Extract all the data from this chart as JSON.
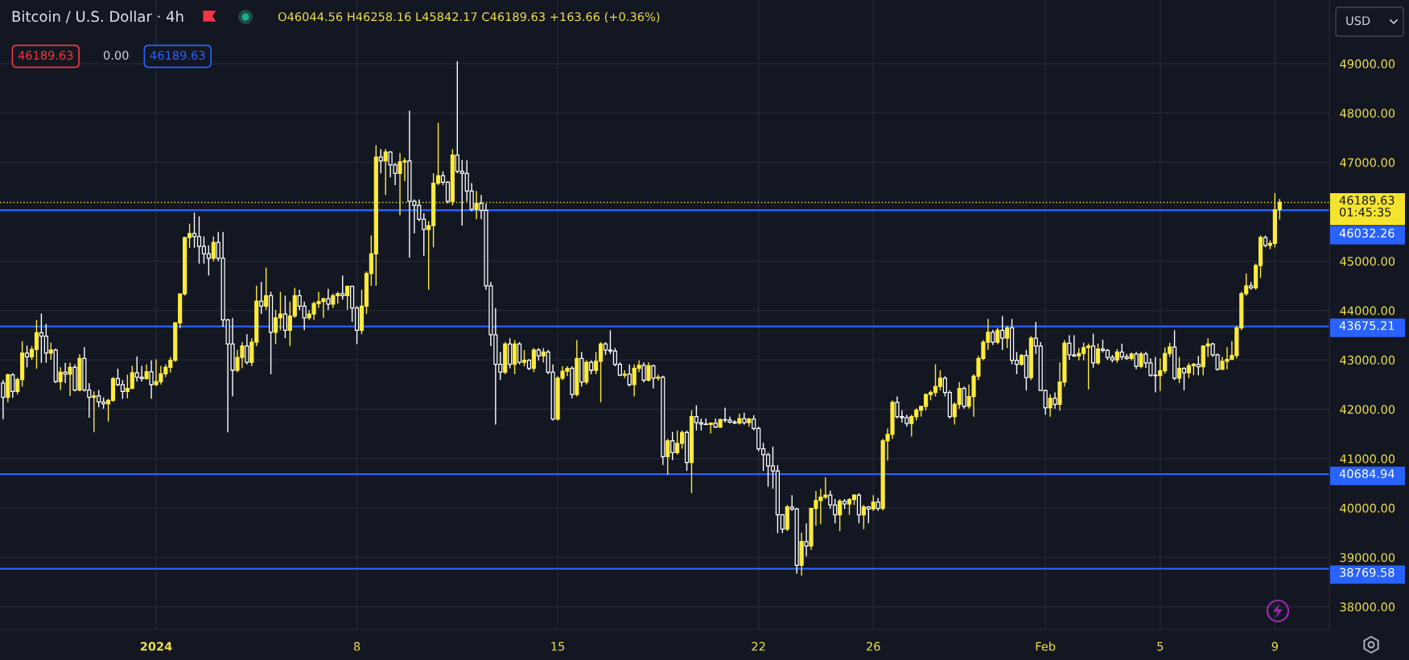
{
  "chart_data": {
    "type": "candlestick",
    "title": "Bitcoin / U.S. Dollar · 4h",
    "annotations": [
      "O46044.56 H46258.16 L45842.17 C46189.63 +163.66 (+0.36%)",
      "46189.63",
      "0.00",
      "46189.63",
      "USD"
    ],
    "x": [
      "2023-12-26T16:00",
      "2023-12-26T20:00",
      "2023-12-27T00:00",
      "2023-12-27T04:00",
      "2023-12-27T08:00",
      "2023-12-27T12:00",
      "2023-12-27T16:00",
      "2023-12-27T20:00",
      "2023-12-28T00:00",
      "2023-12-28T04:00",
      "2023-12-28T08:00",
      "2023-12-28T12:00",
      "2023-12-28T16:00",
      "2023-12-28T20:00",
      "2023-12-29T00:00",
      "2023-12-29T04:00",
      "2023-12-29T08:00",
      "2023-12-29T12:00",
      "2023-12-29T16:00",
      "2023-12-29T20:00",
      "2023-12-30T00:00",
      "2023-12-30T04:00",
      "2023-12-30T08:00",
      "2023-12-30T12:00",
      "2023-12-30T16:00",
      "2023-12-30T20:00",
      "2023-12-31T00:00",
      "2023-12-31T04:00",
      "2023-12-31T08:00",
      "2023-12-31T12:00",
      "2023-12-31T16:00",
      "2023-12-31T20:00",
      "2024-01-01T00:00",
      "2024-01-01T04:00",
      "2024-01-01T08:00",
      "2024-01-01T12:00",
      "2024-01-01T16:00",
      "2024-01-01T20:00",
      "2024-01-02T00:00",
      "2024-01-02T04:00",
      "2024-01-02T08:00",
      "2024-01-02T12:00",
      "2024-01-02T16:00",
      "2024-01-02T20:00",
      "2024-01-03T00:00",
      "2024-01-03T04:00",
      "2024-01-03T08:00",
      "2024-01-03T12:00",
      "2024-01-03T16:00",
      "2024-01-03T20:00",
      "2024-01-04T00:00",
      "2024-01-04T04:00",
      "2024-01-04T08:00",
      "2024-01-04T12:00",
      "2024-01-04T16:00",
      "2024-01-04T20:00",
      "2024-01-05T00:00",
      "2024-01-05T04:00",
      "2024-01-05T08:00",
      "2024-01-05T12:00",
      "2024-01-05T16:00",
      "2024-01-05T20:00",
      "2024-01-06T00:00",
      "2024-01-06T04:00",
      "2024-01-06T08:00",
      "2024-01-06T12:00",
      "2024-01-06T16:00",
      "2024-01-06T20:00",
      "2024-01-07T00:00",
      "2024-01-07T04:00",
      "2024-01-07T08:00",
      "2024-01-07T12:00",
      "2024-01-07T16:00",
      "2024-01-07T20:00",
      "2024-01-08T00:00",
      "2024-01-08T04:00",
      "2024-01-08T08:00",
      "2024-01-08T12:00",
      "2024-01-08T16:00",
      "2024-01-08T20:00",
      "2024-01-09T00:00",
      "2024-01-09T04:00",
      "2024-01-09T08:00",
      "2024-01-09T12:00",
      "2024-01-09T16:00",
      "2024-01-09T20:00",
      "2024-01-10T00:00",
      "2024-01-10T04:00",
      "2024-01-10T08:00",
      "2024-01-10T12:00",
      "2024-01-10T16:00",
      "2024-01-10T20:00",
      "2024-01-11T00:00",
      "2024-01-11T04:00",
      "2024-01-11T08:00",
      "2024-01-11T12:00",
      "2024-01-11T16:00",
      "2024-01-11T20:00",
      "2024-01-12T00:00",
      "2024-01-12T04:00",
      "2024-01-12T08:00",
      "2024-01-12T12:00",
      "2024-01-12T16:00",
      "2024-01-12T20:00",
      "2024-01-13T00:00",
      "2024-01-13T04:00",
      "2024-01-13T08:00",
      "2024-01-13T12:00",
      "2024-01-13T16:00",
      "2024-01-13T20:00",
      "2024-01-14T00:00",
      "2024-01-14T04:00",
      "2024-01-14T08:00",
      "2024-01-14T12:00",
      "2024-01-14T16:00",
      "2024-01-14T20:00",
      "2024-01-15T00:00",
      "2024-01-15T04:00",
      "2024-01-15T08:00",
      "2024-01-15T12:00",
      "2024-01-15T16:00",
      "2024-01-15T20:00",
      "2024-01-16T00:00",
      "2024-01-16T04:00",
      "2024-01-16T08:00",
      "2024-01-16T12:00",
      "2024-01-16T16:00",
      "2024-01-16T20:00",
      "2024-01-17T00:00",
      "2024-01-17T04:00",
      "2024-01-17T08:00",
      "2024-01-17T12:00",
      "2024-01-17T16:00",
      "2024-01-17T20:00",
      "2024-01-18T00:00",
      "2024-01-18T04:00",
      "2024-01-18T08:00",
      "2024-01-18T12:00",
      "2024-01-18T16:00",
      "2024-01-18T20:00",
      "2024-01-19T00:00",
      "2024-01-19T04:00",
      "2024-01-19T08:00",
      "2024-01-19T12:00",
      "2024-01-19T16:00",
      "2024-01-19T20:00",
      "2024-01-20T00:00",
      "2024-01-20T04:00",
      "2024-01-20T08:00",
      "2024-01-20T12:00",
      "2024-01-20T16:00",
      "2024-01-20T20:00",
      "2024-01-21T00:00",
      "2024-01-21T04:00",
      "2024-01-21T08:00",
      "2024-01-21T12:00",
      "2024-01-21T16:00",
      "2024-01-21T20:00",
      "2024-01-22T00:00",
      "2024-01-22T04:00",
      "2024-01-22T08:00",
      "2024-01-22T12:00",
      "2024-01-22T16:00",
      "2024-01-22T20:00",
      "2024-01-23T00:00",
      "2024-01-23T04:00",
      "2024-01-23T08:00",
      "2024-01-23T12:00",
      "2024-01-23T16:00",
      "2024-01-23T20:00",
      "2024-01-24T00:00",
      "2024-01-24T04:00",
      "2024-01-24T08:00",
      "2024-01-24T12:00",
      "2024-01-24T16:00",
      "2024-01-24T20:00",
      "2024-01-25T00:00",
      "2024-01-25T04:00",
      "2024-01-25T08:00",
      "2024-01-25T12:00",
      "2024-01-25T16:00",
      "2024-01-25T20:00",
      "2024-01-26T00:00",
      "2024-01-26T04:00",
      "2024-01-26T08:00",
      "2024-01-26T12:00",
      "2024-01-26T16:00",
      "2024-01-26T20:00",
      "2024-01-27T00:00",
      "2024-01-27T04:00",
      "2024-01-27T08:00",
      "2024-01-27T12:00",
      "2024-01-27T16:00",
      "2024-01-27T20:00",
      "2024-01-28T00:00",
      "2024-01-28T04:00",
      "2024-01-28T08:00",
      "2024-01-28T12:00",
      "2024-01-28T16:00",
      "2024-01-28T20:00",
      "2024-01-29T00:00",
      "2024-01-29T04:00",
      "2024-01-29T08:00",
      "2024-01-29T12:00",
      "2024-01-29T16:00",
      "2024-01-29T20:00",
      "2024-01-30T00:00",
      "2024-01-30T04:00",
      "2024-01-30T08:00",
      "2024-01-30T12:00",
      "2024-01-30T16:00",
      "2024-01-30T20:00",
      "2024-01-31T00:00",
      "2024-01-31T04:00",
      "2024-01-31T08:00",
      "2024-01-31T12:00",
      "2024-01-31T16:00",
      "2024-01-31T20:00",
      "2024-02-01T00:00",
      "2024-02-01T04:00",
      "2024-02-01T08:00",
      "2024-02-01T12:00",
      "2024-02-01T16:00",
      "2024-02-01T20:00",
      "2024-02-02T00:00",
      "2024-02-02T04:00",
      "2024-02-02T08:00",
      "2024-02-02T12:00",
      "2024-02-02T16:00",
      "2024-02-02T20:00",
      "2024-02-03T00:00",
      "2024-02-03T04:00",
      "2024-02-03T08:00",
      "2024-02-03T12:00",
      "2024-02-03T16:00",
      "2024-02-03T20:00",
      "2024-02-04T00:00",
      "2024-02-04T04:00",
      "2024-02-04T08:00",
      "2024-02-04T12:00",
      "2024-02-04T16:00",
      "2024-02-04T20:00",
      "2024-02-05T00:00",
      "2024-02-05T04:00",
      "2024-02-05T08:00",
      "2024-02-05T12:00",
      "2024-02-05T16:00",
      "2024-02-05T20:00",
      "2024-02-06T00:00",
      "2024-02-06T04:00",
      "2024-02-06T08:00",
      "2024-02-06T12:00",
      "2024-02-06T16:00",
      "2024-02-06T20:00",
      "2024-02-07T00:00",
      "2024-02-07T04:00",
      "2024-02-07T08:00",
      "2024-02-07T12:00",
      "2024-02-07T16:00",
      "2024-02-07T20:00",
      "2024-02-08T00:00",
      "2024-02-08T04:00",
      "2024-02-08T08:00",
      "2024-02-08T12:00",
      "2024-02-08T16:00",
      "2024-02-08T20:00",
      "2024-02-09T00:00",
      "2024-02-09T04:00"
    ],
    "ohlc": [
      [
        42530,
        42590,
        41800,
        42240
      ],
      [
        42240,
        42720,
        42140,
        42700
      ],
      [
        42700,
        42730,
        42230,
        42360
      ],
      [
        42360,
        42640,
        42300,
        42600
      ],
      [
        42600,
        43380,
        42460,
        43140
      ],
      [
        43140,
        43290,
        42850,
        43060
      ],
      [
        43060,
        43280,
        43000,
        43210
      ],
      [
        43210,
        43810,
        42820,
        43550
      ],
      [
        43550,
        43940,
        42940,
        43480
      ],
      [
        43480,
        43730,
        42940,
        43140
      ],
      [
        43140,
        43350,
        43000,
        43200
      ],
      [
        43200,
        43230,
        42530,
        42560
      ],
      [
        42560,
        42850,
        42390,
        42750
      ],
      [
        42750,
        42940,
        42530,
        42710
      ],
      [
        42710,
        42940,
        42270,
        42850
      ],
      [
        42850,
        42910,
        42360,
        42390
      ],
      [
        42390,
        43110,
        42360,
        43030
      ],
      [
        43030,
        43260,
        42360,
        42390
      ],
      [
        42390,
        42530,
        41830,
        42240
      ],
      [
        42240,
        42360,
        41540,
        42270
      ],
      [
        42270,
        42390,
        42040,
        42150
      ],
      [
        42150,
        42240,
        42010,
        42110
      ],
      [
        42110,
        42210,
        41750,
        42180
      ],
      [
        42180,
        42650,
        42150,
        42620
      ],
      [
        42620,
        42820,
        42470,
        42500
      ],
      [
        42500,
        42590,
        42210,
        42360
      ],
      [
        42360,
        42700,
        42220,
        42420
      ],
      [
        42420,
        42880,
        42410,
        42740
      ],
      [
        42740,
        43070,
        42560,
        42650
      ],
      [
        42650,
        42880,
        42560,
        42620
      ],
      [
        42620,
        42910,
        42600,
        42760
      ],
      [
        42760,
        42990,
        42210,
        42500
      ],
      [
        42500,
        43010,
        42470,
        42560
      ],
      [
        42560,
        42880,
        42500,
        42720
      ],
      [
        42720,
        42910,
        42650,
        42850
      ],
      [
        42850,
        43060,
        42740,
        42990
      ],
      [
        42990,
        43760,
        42960,
        43750
      ],
      [
        43750,
        44340,
        43640,
        44335
      ],
      [
        44335,
        45490,
        44300,
        45480
      ],
      [
        45480,
        45760,
        45270,
        45560
      ],
      [
        45560,
        45980,
        45270,
        45500
      ],
      [
        45500,
        45910,
        44950,
        45300
      ],
      [
        45300,
        45500,
        44950,
        45150
      ],
      [
        45150,
        45320,
        44710,
        45060
      ],
      [
        45060,
        45500,
        45000,
        45380
      ],
      [
        45380,
        45590,
        45000,
        45060
      ],
      [
        45060,
        45590,
        43670,
        43810
      ],
      [
        43810,
        43830,
        41530,
        43320
      ],
      [
        43320,
        43850,
        42260,
        42790
      ],
      [
        42790,
        43200,
        42750,
        43050
      ],
      [
        43050,
        43360,
        42830,
        43280
      ],
      [
        43280,
        43520,
        42910,
        42950
      ],
      [
        42950,
        43440,
        42870,
        43360
      ],
      [
        43360,
        44500,
        43280,
        44190
      ],
      [
        44190,
        44580,
        43930,
        44090
      ],
      [
        44090,
        44870,
        44010,
        44300
      ],
      [
        44300,
        44380,
        42710,
        43560
      ],
      [
        43560,
        44010,
        43320,
        43850
      ],
      [
        43850,
        44380,
        43600,
        43930
      ],
      [
        43930,
        44300,
        43440,
        43600
      ],
      [
        43600,
        44180,
        43280,
        43890
      ],
      [
        43890,
        44460,
        43850,
        44300
      ],
      [
        44300,
        44420,
        44010,
        44090
      ],
      [
        44090,
        44180,
        43600,
        43850
      ],
      [
        43850,
        44010,
        43810,
        43930
      ],
      [
        43930,
        44180,
        43810,
        44140
      ],
      [
        44140,
        44380,
        44050,
        44180
      ],
      [
        44180,
        44260,
        43850,
        44240
      ],
      [
        44240,
        44440,
        44010,
        44130
      ],
      [
        44130,
        44340,
        44050,
        44300
      ],
      [
        44300,
        44380,
        44140,
        44340
      ],
      [
        44340,
        44710,
        44220,
        44300
      ],
      [
        44300,
        44500,
        44010,
        44490
      ],
      [
        44490,
        44500,
        43770,
        44050
      ],
      [
        44050,
        44090,
        43320,
        43600
      ],
      [
        43600,
        44420,
        43520,
        44090
      ],
      [
        44090,
        44790,
        43930,
        44750
      ],
      [
        44750,
        45520,
        44500,
        45150
      ],
      [
        45150,
        47350,
        44500,
        47110
      ],
      [
        47110,
        47270,
        46780,
        47030
      ],
      [
        47030,
        47270,
        46340,
        47210
      ],
      [
        47210,
        47230,
        46700,
        46950
      ],
      [
        46950,
        46990,
        46540,
        46780
      ],
      [
        46780,
        47190,
        45930,
        47010
      ],
      [
        47010,
        47090,
        46620,
        47030
      ],
      [
        47030,
        48050,
        45070,
        46210
      ],
      [
        46210,
        46250,
        45560,
        46130
      ],
      [
        46130,
        46250,
        45810,
        45850
      ],
      [
        45850,
        45970,
        45110,
        45640
      ],
      [
        45640,
        45810,
        44420,
        45720
      ],
      [
        45720,
        46780,
        45280,
        46580
      ],
      [
        46580,
        47800,
        46540,
        46730
      ],
      [
        46730,
        46820,
        46540,
        46600
      ],
      [
        46600,
        46620,
        46170,
        46210
      ],
      [
        46210,
        47270,
        46130,
        47150
      ],
      [
        47150,
        49050,
        46780,
        46820
      ],
      [
        46820,
        47050,
        45720,
        46780
      ],
      [
        46780,
        47040,
        46210,
        46420
      ],
      [
        46420,
        46580,
        46010,
        46050
      ],
      [
        46050,
        46420,
        45850,
        46170
      ],
      [
        46170,
        46340,
        45850,
        46030
      ],
      [
        46030,
        46170,
        44420,
        44500
      ],
      [
        44500,
        44580,
        43280,
        43510
      ],
      [
        43510,
        44050,
        41690,
        42910
      ],
      [
        42910,
        43160,
        42590,
        42750
      ],
      [
        42750,
        43360,
        42710,
        43320
      ],
      [
        43320,
        43440,
        42830,
        42910
      ],
      [
        42910,
        43400,
        42710,
        43320
      ],
      [
        43320,
        43360,
        42910,
        42950
      ],
      [
        42950,
        43200,
        42870,
        42990
      ],
      [
        42990,
        43020,
        42790,
        42830
      ],
      [
        42830,
        43240,
        42750,
        43200
      ],
      [
        43200,
        43240,
        42990,
        43080
      ],
      [
        43080,
        43240,
        42950,
        43160
      ],
      [
        43160,
        43200,
        42710,
        42750
      ],
      [
        42750,
        42910,
        41770,
        41800
      ],
      [
        41800,
        42670,
        41770,
        42630
      ],
      [
        42630,
        42870,
        42590,
        42770
      ],
      [
        42770,
        42870,
        42670,
        42830
      ],
      [
        42830,
        42870,
        42220,
        42300
      ],
      [
        42300,
        43400,
        42260,
        43030
      ],
      [
        43030,
        43160,
        42460,
        42550
      ],
      [
        42550,
        42990,
        42500,
        42950
      ],
      [
        42950,
        42990,
        42710,
        42790
      ],
      [
        42790,
        43160,
        42710,
        42970
      ],
      [
        42970,
        43360,
        42140,
        43320
      ],
      [
        43320,
        43360,
        43100,
        43200
      ],
      [
        43200,
        43600,
        43120,
        43180
      ],
      [
        43180,
        43240,
        42870,
        42910
      ],
      [
        42910,
        42950,
        42670,
        42690
      ],
      [
        42690,
        42790,
        42630,
        42710
      ],
      [
        42710,
        42910,
        42460,
        42500
      ],
      [
        42500,
        42910,
        42260,
        42830
      ],
      [
        42830,
        42990,
        42750,
        42890
      ],
      [
        42890,
        42950,
        42540,
        42590
      ],
      [
        42590,
        42950,
        42560,
        42880
      ],
      [
        42880,
        42900,
        42420,
        42630
      ],
      [
        42630,
        42700,
        42580,
        42650
      ],
      [
        42650,
        42680,
        40870,
        41040
      ],
      [
        41040,
        41400,
        40670,
        41360
      ],
      [
        41360,
        41540,
        40970,
        41120
      ],
      [
        41120,
        41570,
        41080,
        41310
      ],
      [
        41310,
        41570,
        41200,
        41530
      ],
      [
        41530,
        41570,
        40750,
        40920
      ],
      [
        40920,
        41980,
        40300,
        41850
      ],
      [
        41850,
        42080,
        41570,
        41730
      ],
      [
        41730,
        41810,
        41570,
        41700
      ],
      [
        41700,
        41810,
        41680,
        41690
      ],
      [
        41690,
        41730,
        41510,
        41720
      ],
      [
        41720,
        41810,
        41620,
        41640
      ],
      [
        41640,
        41810,
        41620,
        41790
      ],
      [
        41790,
        42030,
        41730,
        41780
      ],
      [
        41780,
        41850,
        41710,
        41740
      ],
      [
        41740,
        41780,
        41700,
        41720
      ],
      [
        41720,
        41910,
        41690,
        41810
      ],
      [
        41810,
        41930,
        41690,
        41730
      ],
      [
        41730,
        41830,
        41650,
        41800
      ],
      [
        41800,
        41880,
        41570,
        41610
      ],
      [
        41610,
        41650,
        41150,
        41200
      ],
      [
        41200,
        41320,
        40750,
        41080
      ],
      [
        41080,
        41120,
        40430,
        40850
      ],
      [
        40850,
        41240,
        40390,
        40750
      ],
      [
        40750,
        40870,
        39490,
        39860
      ],
      [
        39860,
        39880,
        39490,
        39570
      ],
      [
        39570,
        40060,
        39530,
        40020
      ],
      [
        40020,
        40260,
        39940,
        39980
      ],
      [
        39980,
        40000,
        38670,
        38840
      ],
      [
        38840,
        39500,
        38630,
        39320
      ],
      [
        39320,
        39690,
        39020,
        39230
      ],
      [
        39230,
        40000,
        39150,
        39990
      ],
      [
        39990,
        40345,
        39640,
        40150
      ],
      [
        40150,
        40390,
        39670,
        40220
      ],
      [
        40220,
        40620,
        40180,
        40260
      ],
      [
        40260,
        40350,
        39980,
        40060
      ],
      [
        40060,
        40180,
        39690,
        39860
      ],
      [
        39860,
        40180,
        39530,
        40140
      ],
      [
        40140,
        40180,
        39980,
        40080
      ],
      [
        40080,
        40200,
        39860,
        40170
      ],
      [
        40170,
        40280,
        40060,
        40260
      ],
      [
        40260,
        40300,
        39690,
        39860
      ],
      [
        39860,
        40060,
        39570,
        40020
      ],
      [
        40020,
        40040,
        39690,
        39980
      ],
      [
        39980,
        40260,
        39940,
        40120
      ],
      [
        40120,
        40200,
        39940,
        39990
      ],
      [
        39990,
        41400,
        39950,
        41360
      ],
      [
        41360,
        41610,
        40960,
        41490
      ],
      [
        41490,
        42180,
        41400,
        42140
      ],
      [
        42140,
        42260,
        41810,
        41850
      ],
      [
        41850,
        41980,
        41730,
        41830
      ],
      [
        41830,
        41890,
        41650,
        41710
      ],
      [
        41710,
        41890,
        41450,
        41850
      ],
      [
        41850,
        42020,
        41770,
        41980
      ],
      [
        41980,
        42070,
        41850,
        42060
      ],
      [
        42060,
        42320,
        41980,
        42300
      ],
      [
        42300,
        42380,
        42180,
        42340
      ],
      [
        42340,
        42910,
        42260,
        42460
      ],
      [
        42460,
        42790,
        42380,
        42630
      ],
      [
        42630,
        42670,
        42260,
        42340
      ],
      [
        42340,
        42380,
        41810,
        41850
      ],
      [
        41850,
        42140,
        41690,
        42100
      ],
      [
        42100,
        42550,
        42010,
        42420
      ],
      [
        42420,
        42460,
        42010,
        42060
      ],
      [
        42060,
        42500,
        42010,
        42260
      ],
      [
        42260,
        42710,
        41850,
        42670
      ],
      [
        42670,
        43080,
        42590,
        43030
      ],
      [
        43030,
        43400,
        42990,
        43360
      ],
      [
        43360,
        43830,
        43200,
        43560
      ],
      [
        43560,
        43610,
        43300,
        43360
      ],
      [
        43360,
        43650,
        43320,
        43600
      ],
      [
        43600,
        43890,
        43200,
        43440
      ],
      [
        43440,
        43690,
        43240,
        43650
      ],
      [
        43650,
        43830,
        42910,
        42990
      ],
      [
        42990,
        43160,
        42710,
        42910
      ],
      [
        42910,
        43120,
        42880,
        43090
      ],
      [
        43090,
        43200,
        42380,
        42640
      ],
      [
        42640,
        43480,
        42590,
        43440
      ],
      [
        43440,
        43770,
        43120,
        43280
      ],
      [
        43280,
        43360,
        42370,
        42380
      ],
      [
        42380,
        42400,
        41890,
        42030
      ],
      [
        42030,
        42300,
        41850,
        42220
      ],
      [
        42220,
        42340,
        42010,
        42100
      ],
      [
        42100,
        42950,
        41970,
        42550
      ],
      [
        42550,
        43400,
        42460,
        43340
      ],
      [
        43340,
        43500,
        43000,
        43100
      ],
      [
        43100,
        43500,
        43060,
        43080
      ],
      [
        43080,
        43240,
        42990,
        43130
      ],
      [
        43130,
        43350,
        42990,
        43250
      ],
      [
        43250,
        43330,
        42400,
        43280
      ],
      [
        43280,
        43530,
        42840,
        42940
      ],
      [
        42940,
        43330,
        42900,
        43220
      ],
      [
        43220,
        43410,
        43150,
        43190
      ],
      [
        43190,
        43220,
        43000,
        43050
      ],
      [
        43050,
        43100,
        42950,
        43000
      ],
      [
        43000,
        43220,
        42940,
        43160
      ],
      [
        43160,
        43330,
        43000,
        43060
      ],
      [
        43060,
        43120,
        43000,
        43030
      ],
      [
        43030,
        43150,
        42990,
        43120
      ],
      [
        43120,
        43160,
        42810,
        42870
      ],
      [
        42870,
        43160,
        42830,
        43120
      ],
      [
        43120,
        43160,
        42840,
        42940
      ],
      [
        42940,
        43030,
        42660,
        42690
      ],
      [
        42690,
        43060,
        42340,
        42680
      ],
      [
        42680,
        43030,
        42370,
        42780
      ],
      [
        42780,
        43250,
        42720,
        43130
      ],
      [
        43130,
        43350,
        43060,
        43260
      ],
      [
        43260,
        43600,
        42590,
        42630
      ],
      [
        42630,
        43060,
        42530,
        42830
      ],
      [
        42830,
        42850,
        42380,
        42740
      ],
      [
        42740,
        42940,
        42630,
        42880
      ],
      [
        42880,
        42940,
        42690,
        42910
      ],
      [
        42910,
        43080,
        42690,
        42860
      ],
      [
        42860,
        43290,
        42690,
        43280
      ],
      [
        43280,
        43440,
        43060,
        43320
      ],
      [
        43320,
        43350,
        43060,
        43100
      ],
      [
        43100,
        43130,
        42780,
        42810
      ],
      [
        42810,
        43060,
        42800,
        42970
      ],
      [
        42970,
        43260,
        42810,
        43010
      ],
      [
        43010,
        43380,
        43000,
        43090
      ],
      [
        43090,
        43690,
        43030,
        43650
      ],
      [
        43650,
        44380,
        43600,
        44340
      ],
      [
        44340,
        44750,
        44300,
        44500
      ],
      [
        44500,
        44580,
        44420,
        44460
      ],
      [
        44460,
        44950,
        44420,
        44910
      ],
      [
        44910,
        45520,
        44660,
        45480
      ],
      [
        45480,
        45520,
        45280,
        45320
      ],
      [
        45320,
        45420,
        45240,
        45360
      ],
      [
        45360,
        46380,
        45280,
        46040
      ],
      [
        46044.56,
        46258.16,
        45842.17,
        46189.63
      ]
    ],
    "colors": [
      "#ffffff",
      "#ffeb3b",
      "#ffffff",
      "#ffeb3b",
      "#ffeb3b",
      "#ffffff",
      "#ffeb3b",
      "#ffeb3b",
      "#ffffff",
      "#ffffff",
      "#ffeb3b",
      "#ffffff",
      "#ffeb3b",
      "#ffffff",
      "#ffeb3b",
      "#ffffff",
      "#ffeb3b",
      "#ffffff",
      "#ffffff",
      "#ffeb3b",
      "#ffffff",
      "#ffffff",
      "#ffeb3b",
      "#ffeb3b",
      "#ffffff",
      "#ffffff",
      "#ffeb3b",
      "#ffeb3b",
      "#ffffff",
      "#ffffff",
      "#ffeb3b",
      "#ffffff",
      "#ffeb3b",
      "#ffeb3b",
      "#ffeb3b",
      "#ffeb3b",
      "#ffeb3b",
      "#ffeb3b",
      "#ffeb3b",
      "#ffeb3b",
      "#ffffff",
      "#ffffff",
      "#ffffff",
      "#ffffff",
      "#ffeb3b",
      "#ffffff",
      "#ffffff",
      "#ffffff",
      "#ffffff",
      "#ffeb3b",
      "#ffeb3b",
      "#ffffff",
      "#ffeb3b",
      "#ffeb3b",
      "#ffffff",
      "#ffeb3b",
      "#ffffff",
      "#ffeb3b",
      "#ffeb3b",
      "#ffffff",
      "#ffeb3b",
      "#ffeb3b",
      "#ffffff",
      "#ffffff",
      "#ffeb3b",
      "#ffeb3b",
      "#ffeb3b",
      "#ffeb3b",
      "#ffffff",
      "#ffeb3b",
      "#ffeb3b",
      "#ffffff",
      "#ffeb3b",
      "#ffffff",
      "#ffffff",
      "#ffeb3b",
      "#ffeb3b",
      "#ffeb3b",
      "#ffeb3b",
      "#ffffff",
      "#ffeb3b",
      "#ffffff",
      "#ffffff",
      "#ffeb3b",
      "#ffeb3b",
      "#ffffff",
      "#ffffff",
      "#ffffff",
      "#ffffff",
      "#ffeb3b",
      "#ffeb3b",
      "#ffeb3b",
      "#ffffff",
      "#ffffff",
      "#ffeb3b",
      "#ffffff",
      "#ffffff",
      "#ffffff",
      "#ffffff",
      "#ffeb3b",
      "#ffffff",
      "#ffffff",
      "#ffffff",
      "#ffffff",
      "#ffffff",
      "#ffeb3b",
      "#ffffff",
      "#ffeb3b",
      "#ffffff",
      "#ffeb3b",
      "#ffffff",
      "#ffeb3b",
      "#ffffff",
      "#ffeb3b",
      "#ffffff",
      "#ffffff",
      "#ffeb3b",
      "#ffeb3b",
      "#ffeb3b",
      "#ffffff",
      "#ffeb3b",
      "#ffffff",
      "#ffeb3b",
      "#ffffff",
      "#ffeb3b",
      "#ffeb3b",
      "#ffffff",
      "#ffffff",
      "#ffffff",
      "#ffffff",
      "#ffeb3b",
      "#ffffff",
      "#ffeb3b",
      "#ffeb3b",
      "#ffffff",
      "#ffeb3b",
      "#ffffff",
      "#ffeb3b",
      "#ffffff",
      "#ffeb3b",
      "#ffffff",
      "#ffeb3b",
      "#ffeb3b",
      "#ffffff",
      "#ffeb3b",
      "#ffffff",
      "#ffffff",
      "#ffffff",
      "#ffeb3b",
      "#ffffff",
      "#ffeb3b",
      "#ffffff",
      "#ffffff",
      "#ffffff",
      "#ffeb3b",
      "#ffffff",
      "#ffeb3b",
      "#ffffff",
      "#ffffff",
      "#ffffff",
      "#ffffff",
      "#ffffff",
      "#ffffff",
      "#ffffff",
      "#ffeb3b",
      "#ffffff",
      "#ffffff",
      "#ffeb3b",
      "#ffffff",
      "#ffeb3b",
      "#ffeb3b",
      "#ffeb3b",
      "#ffeb3b",
      "#ffffff",
      "#ffffff",
      "#ffeb3b",
      "#ffffff",
      "#ffeb3b",
      "#ffeb3b",
      "#ffffff",
      "#ffeb3b",
      "#ffffff",
      "#ffeb3b",
      "#ffffff",
      "#ffeb3b",
      "#ffeb3b",
      "#ffeb3b",
      "#ffffff",
      "#ffffff",
      "#ffffff",
      "#ffeb3b",
      "#ffeb3b",
      "#ffeb3b",
      "#ffeb3b",
      "#ffeb3b",
      "#ffeb3b",
      "#ffeb3b",
      "#ffffff",
      "#ffffff",
      "#ffeb3b",
      "#ffeb3b",
      "#ffffff",
      "#ffeb3b",
      "#ffeb3b",
      "#ffeb3b",
      "#ffeb3b",
      "#ffeb3b",
      "#ffffff",
      "#ffeb3b",
      "#ffffff",
      "#ffeb3b",
      "#ffffff",
      "#ffffff",
      "#ffeb3b",
      "#ffffff",
      "#ffeb3b",
      "#ffffff",
      "#ffffff",
      "#ffffff",
      "#ffeb3b",
      "#ffffff",
      "#ffeb3b",
      "#ffeb3b",
      "#ffffff",
      "#ffffff",
      "#ffeb3b",
      "#ffeb3b",
      "#ffeb3b",
      "#ffffff",
      "#ffeb3b",
      "#ffffff",
      "#ffffff",
      "#ffffff",
      "#ffeb3b",
      "#ffffff",
      "#ffffff",
      "#ffeb3b",
      "#ffffff",
      "#ffeb3b",
      "#ffffff",
      "#ffffff",
      "#ffffff",
      "#ffeb3b",
      "#ffeb3b",
      "#ffeb3b",
      "#ffffff",
      "#ffeb3b",
      "#ffffff",
      "#ffeb3b",
      "#ffeb3b",
      "#ffffff",
      "#ffeb3b",
      "#ffeb3b",
      "#ffffff",
      "#ffffff",
      "#ffeb3b",
      "#ffeb3b",
      "#ffeb3b",
      "#ffeb3b",
      "#ffeb3b",
      "#ffeb3b",
      "#ffffff",
      "#ffeb3b",
      "#ffeb3b",
      "#ffffff",
      "#ffeb3b",
      "#ffeb3b",
      "#ffeb3b"
    ],
    "xlim": [
      "2023-12-26T13:24",
      "2024-02-10T21:32"
    ],
    "ylim": [
      37540,
      50290
    ],
    "xticks": [
      {
        "value": "2024-01-01",
        "label": "2024"
      },
      {
        "value": "2024-01-08",
        "label": "8"
      },
      {
        "value": "2024-01-15",
        "label": "15"
      },
      {
        "value": "2024-01-22",
        "label": "22"
      },
      {
        "value": "2024-01-26",
        "label": "26"
      },
      {
        "value": "2024-02-01",
        "label": "Feb"
      },
      {
        "value": "2024-02-05",
        "label": "5"
      },
      {
        "value": "2024-02-09",
        "label": "9"
      }
    ],
    "yticks": [
      {
        "value": 38000,
        "label": "38000.00"
      },
      {
        "value": 39000,
        "label": "39000.00"
      },
      {
        "value": 40000,
        "label": "40000.00"
      },
      {
        "value": 41000,
        "label": "41000.00"
      },
      {
        "value": 42000,
        "label": "42000.00"
      },
      {
        "value": 43000,
        "label": "43000.00"
      },
      {
        "value": 44000,
        "label": "44000.00"
      },
      {
        "value": 45000,
        "label": "45000.00"
      },
      {
        "value": 46000,
        "label": null
      },
      {
        "value": 47000,
        "label": "47000.00"
      },
      {
        "value": 48000,
        "label": "48000.00"
      },
      {
        "value": 49000,
        "label": "49000.00"
      }
    ],
    "ref_lines": [
      {
        "axis": "y",
        "value": 46189.63,
        "label": "46189.63\n01:45:35",
        "color": "#f5e42d",
        "line_style": "dotted"
      },
      {
        "axis": "y",
        "value": 46032.26,
        "label": "46032.26",
        "color": "#2962ff"
      },
      {
        "axis": "y",
        "value": 43675.21,
        "label": "43675.21",
        "color": "#2962ff"
      },
      {
        "axis": "y",
        "value": 40684.94,
        "label": "40684.94",
        "color": "#2962ff"
      },
      {
        "axis": "y",
        "value": 38769.58,
        "label": "38769.58",
        "color": "#2962ff"
      }
    ],
    "grid": true
  }
}
